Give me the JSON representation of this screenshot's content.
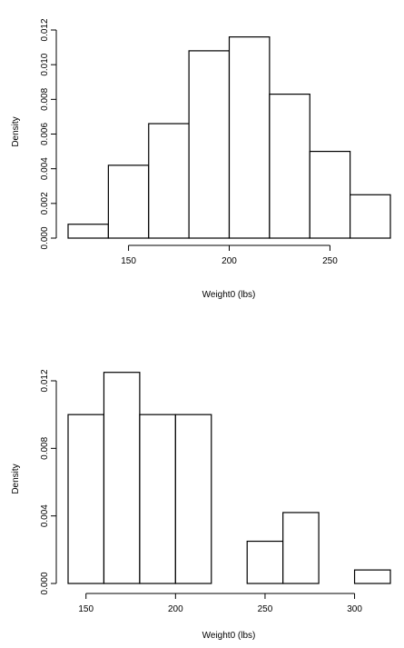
{
  "chart_data": [
    {
      "type": "bar",
      "xlabel": "Weight0 (lbs)",
      "ylabel": "Density",
      "bin_edges": [
        120,
        140,
        160,
        180,
        200,
        220,
        240,
        260,
        280
      ],
      "values": [
        0.0008,
        0.0042,
        0.0066,
        0.0108,
        0.0116,
        0.0083,
        0.005,
        0.0025
      ],
      "xlim": [
        120,
        280
      ],
      "ylim": [
        0,
        0.012
      ],
      "xticks": [
        150,
        200,
        250
      ],
      "yticks": [
        0.0,
        0.002,
        0.004,
        0.006,
        0.008,
        0.01,
        0.012
      ],
      "xtick_labels": [
        "150",
        "200",
        "250"
      ],
      "ytick_labels": [
        "0.000",
        "0.002",
        "0.004",
        "0.006",
        "0.008",
        "0.010",
        "0.012"
      ],
      "grid": false
    },
    {
      "type": "bar",
      "xlabel": "Weight0 (lbs)",
      "ylabel": "Density",
      "bin_edges": [
        140,
        160,
        180,
        200,
        220,
        240,
        260,
        280,
        300,
        320
      ],
      "values": [
        0.01,
        0.0125,
        0.01,
        0.01,
        0.0,
        0.0025,
        0.0042,
        0.0,
        0.0008
      ],
      "xlim": [
        140,
        320
      ],
      "ylim": [
        0,
        0.012
      ],
      "xticks": [
        150,
        200,
        250,
        300
      ],
      "yticks": [
        0.0,
        0.004,
        0.008,
        0.012
      ],
      "xtick_labels": [
        "150",
        "200",
        "250",
        "300"
      ],
      "ytick_labels": [
        "0.000",
        "0.004",
        "0.008",
        "0.012"
      ],
      "grid": false
    }
  ]
}
